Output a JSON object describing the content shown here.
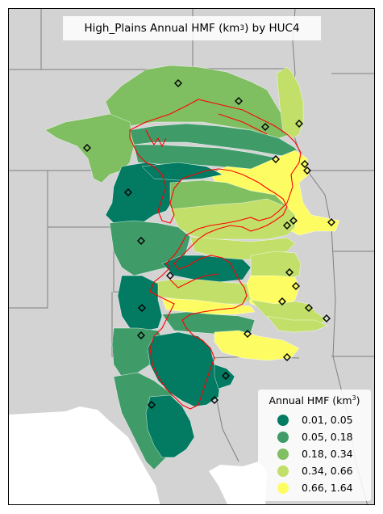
{
  "title": {
    "prefix": "High_Plains Annual HMF (km",
    "sup": "3",
    "suffix": ") by HUC4"
  },
  "legend": {
    "title_prefix": "Annual HMF (km",
    "title_sup": "3",
    "title_suffix": ")",
    "items": [
      {
        "label": "0.01, 0.05",
        "color": "#027b62"
      },
      {
        "label": "0.05, 0.18",
        "color": "#3f9c68"
      },
      {
        "label": "0.18, 0.34",
        "color": "#7fbf62"
      },
      {
        "label": "0.34, 0.66",
        "color": "#c1df69"
      },
      {
        "label": "0.66, 1.64",
        "color": "#fdfd63"
      }
    ]
  },
  "colors": {
    "land": "#d3d3d3",
    "water": "#ffffff",
    "state_border": "#7f7f7f",
    "aquifer_outline": "#ff0000",
    "marker_edge": "#000000"
  },
  "map_features": [
    "huc4-basins",
    "high-plains-aquifer-outline",
    "state-boundaries",
    "huc4-centroid-markers"
  ]
}
